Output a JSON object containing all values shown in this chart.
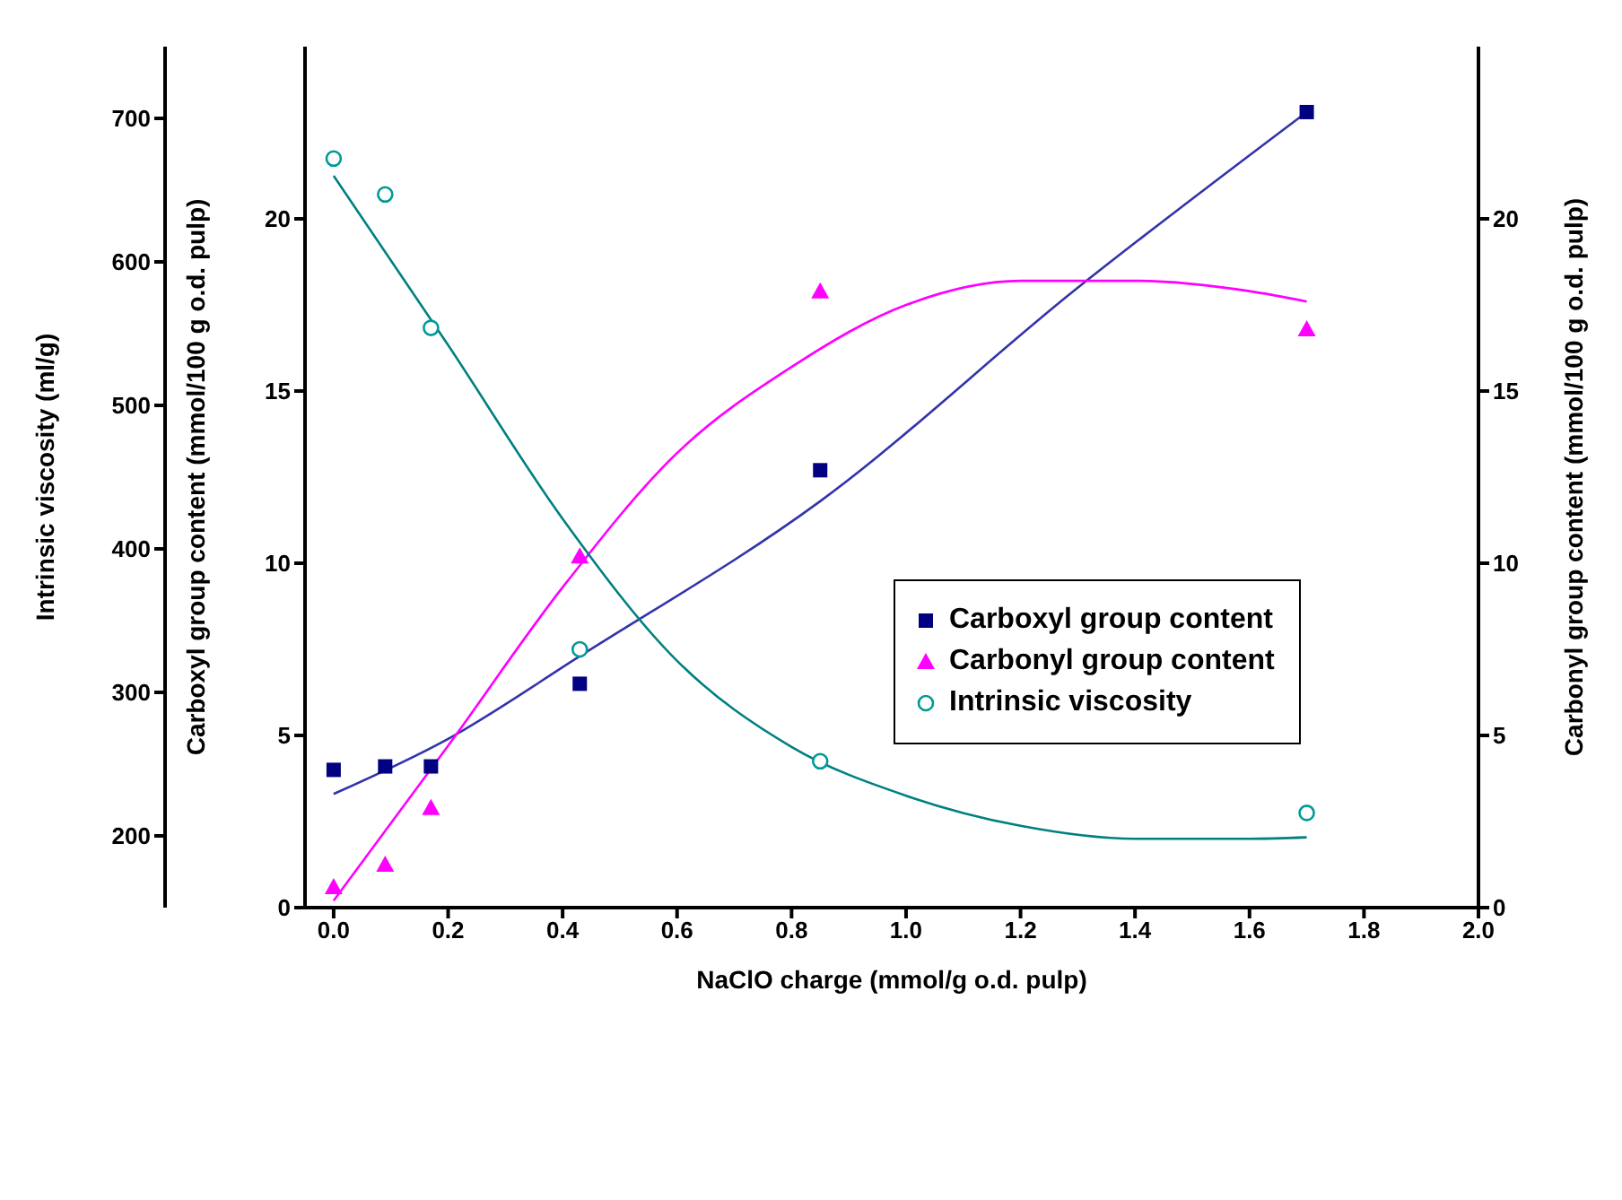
{
  "chart_data": {
    "type": "scatter",
    "xlabel": "NaClO charge (mmol/g o.d. pulp)",
    "ylabel": "Carboxyl group content (mmol/100 g o.d. pulp)",
    "y2label": "Carbonyl group content (mmol/100 g o.d. pulp)",
    "y3label": "Intrinsic viscosity (ml/g)",
    "xlim": [
      -0.05,
      2.0
    ],
    "xticks": [
      {
        "value": 0,
        "label": "0.0"
      },
      0.2,
      0.4,
      0.6,
      0.8,
      {
        "value": 1,
        "label": "1.0"
      },
      1.2,
      1.4,
      1.6,
      1.8,
      {
        "value": 2,
        "label": "2.0"
      }
    ],
    "ylim": [
      0,
      25
    ],
    "yticks": [
      0,
      5,
      10,
      15,
      20
    ],
    "y2lim": [
      0,
      25
    ],
    "y2ticks": [
      0,
      5,
      10,
      15,
      20
    ],
    "y3lim": [
      150,
      750
    ],
    "y3ticks": [
      200,
      300,
      400,
      500,
      600,
      700
    ],
    "grid": false,
    "legend": "right",
    "x": [
      0,
      0.09,
      0.17,
      0.43,
      0.85,
      1.7
    ],
    "series": [
      {
        "name": "Carboxyl group content",
        "color": "#000080",
        "marker": "square",
        "values": [
          4.0,
          4.1,
          4.1,
          6.5,
          12.7,
          23.1
        ]
      },
      {
        "name": "Carbonyl group content",
        "color": "#ff00ff",
        "marker": "triangle",
        "axis": "y2",
        "values": [
          0.6,
          1.25,
          2.9,
          10.2,
          17.9,
          16.8
        ]
      },
      {
        "name": "Intrinsic viscosity",
        "color": "#009999",
        "marker": "circle",
        "axis": "y3",
        "values": [
          672,
          647,
          554,
          330,
          252,
          216
        ]
      },
      {
        "type": "line",
        "color": "#3333aa",
        "marker": "none",
        "x": [
          0,
          0.2,
          0.43,
          0.85,
          1.3,
          1.7
        ],
        "values": [
          3.3,
          4.9,
          7.3,
          11.8,
          18.0,
          23.1
        ]
      },
      {
        "type": "line",
        "color": "#ff00ff",
        "marker": "none",
        "axis": "y2",
        "x": [
          0,
          0.2,
          0.4,
          0.6,
          0.8,
          1.0,
          1.2,
          1.4,
          1.6,
          1.7
        ],
        "values": [
          0.2,
          4.7,
          9.3,
          13.2,
          15.7,
          17.5,
          18.2,
          18.2,
          17.9,
          17.6
        ]
      },
      {
        "type": "line",
        "color": "#008080",
        "marker": "none",
        "axis": "y3",
        "x": [
          0,
          0.2,
          0.4,
          0.6,
          0.8,
          1.0,
          1.2,
          1.4,
          1.6,
          1.7
        ],
        "values": [
          660,
          542,
          421,
          322,
          262,
          228,
          207,
          198,
          198,
          199
        ]
      }
    ]
  }
}
